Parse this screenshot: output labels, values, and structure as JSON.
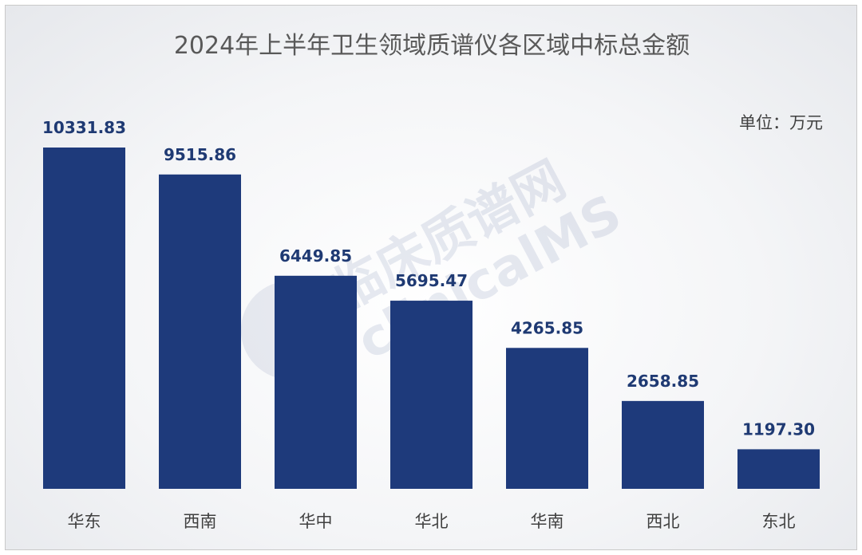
{
  "chart_data": {
    "type": "bar",
    "title": "2024年上半年卫生领域质谱仪各区域中标总金额",
    "unit_label": "单位：万元",
    "categories": [
      "华东",
      "西南",
      "华中",
      "华北",
      "华南",
      "西北",
      "东北"
    ],
    "values": [
      10331.83,
      9515.86,
      6449.85,
      5695.47,
      4265.85,
      2658.85,
      1197.3
    ],
    "value_labels": [
      "10331.83",
      "9515.86",
      "6449.85",
      "5695.47",
      "4265.85",
      "2658.85",
      "1197.30"
    ],
    "ylim": [
      0,
      10331.83
    ],
    "grid": false,
    "legend": "none",
    "bar_color": "#1e3a7b",
    "label_color": "#1f3a73"
  },
  "watermark": {
    "line1": "临床质谱网",
    "line2": "clinicalMS"
  }
}
